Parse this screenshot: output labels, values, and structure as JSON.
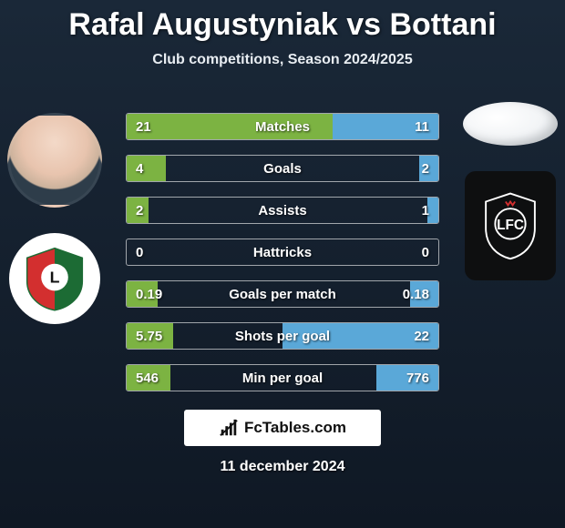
{
  "title": "Rafal Augustyniak vs Bottani",
  "subtitle": "Club competitions, Season 2024/2025",
  "date": "11 december 2024",
  "brand": "FcTables.com",
  "colors": {
    "left": "#7cb342",
    "right": "#5aa8d8",
    "bar_border": "rgba(255,255,255,.6)",
    "empty": "transparent"
  },
  "bars": [
    {
      "label": "Matches",
      "left_text": "21",
      "right_text": "11",
      "left_pct": 66,
      "right_pct": 34
    },
    {
      "label": "Goals",
      "left_text": "4",
      "right_text": "2",
      "left_pct": 12.5,
      "right_pct": 6
    },
    {
      "label": "Assists",
      "left_text": "2",
      "right_text": "1",
      "left_pct": 7,
      "right_pct": 3.5
    },
    {
      "label": "Hattricks",
      "left_text": "0",
      "right_text": "0",
      "left_pct": 0,
      "right_pct": 0
    },
    {
      "label": "Goals per match",
      "left_text": "0.19",
      "right_text": "0.18",
      "left_pct": 10,
      "right_pct": 9
    },
    {
      "label": "Shots per goal",
      "left_text": "5.75",
      "right_text": "22",
      "left_pct": 15,
      "right_pct": 50
    },
    {
      "label": "Min per goal",
      "left_text": "546",
      "right_text": "776",
      "left_pct": 14,
      "right_pct": 20
    }
  ],
  "typography": {
    "title_fontsize": 34,
    "subtitle_fontsize": 16,
    "bar_label_fontsize": 15,
    "bar_value_fontsize": 15,
    "date_fontsize": 16
  }
}
